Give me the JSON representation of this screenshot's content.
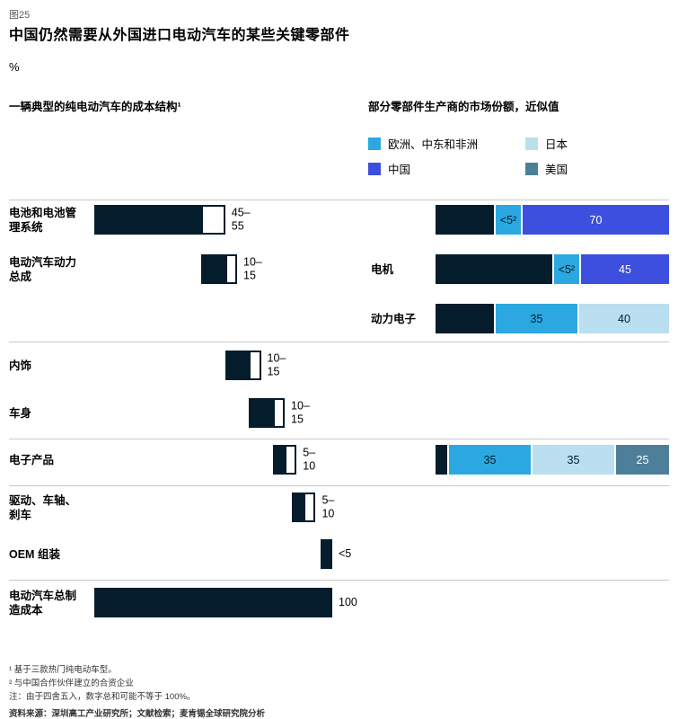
{
  "header": {
    "figure_label": "图25",
    "title": "中国仍然需要从外国进口电动汽车的某些关键零部件",
    "unit": "%"
  },
  "panels": {
    "left_title": "一辆典型的纯电动汽车的成本结构¹",
    "right_title": "部分零部件生产商的市场份额，近似值"
  },
  "legend": {
    "items": [
      {
        "label": "欧洲、中东和非洲",
        "key": "emea"
      },
      {
        "label": "中国",
        "key": "china"
      },
      {
        "label": "日本",
        "key": "japan"
      },
      {
        "label": "美国",
        "key": "us"
      }
    ]
  },
  "palette": {
    "dark": "#051c2c",
    "emea": "#2ba8e0",
    "china": "#3d4fde",
    "japan": "#b9dff0",
    "us": "#4e7f98"
  },
  "chart_data": [
    {
      "type": "bar",
      "variant": "waterfall",
      "title": "一辆典型的纯电动汽车的成本结构",
      "unit": "%",
      "axis_max": 100,
      "items": [
        {
          "label": "电池和电池管理系统",
          "row": 0,
          "start": 0,
          "solid_to": 45,
          "range_to": 55,
          "value_label": "45–\n55"
        },
        {
          "label": "电动汽车动力总成",
          "row": 1,
          "start": 45,
          "solid_to": 55,
          "range_to": 60,
          "value_label": "10–\n15"
        },
        {
          "label": "内饰",
          "row": 3,
          "start": 55,
          "solid_to": 65,
          "range_to": 70,
          "value_label": "10–\n15"
        },
        {
          "label": "车身",
          "row": 4,
          "start": 65,
          "solid_to": 75,
          "range_to": 80,
          "value_label": "10–\n15"
        },
        {
          "label": "电子产品",
          "row": 5,
          "start": 75,
          "solid_to": 80,
          "range_to": 85,
          "value_label": "5–\n10"
        },
        {
          "label": "驱动、车轴、刹车",
          "row": 6,
          "start": 83,
          "solid_to": 88,
          "range_to": 93,
          "value_label": "5–\n10"
        },
        {
          "label": "OEM 组装",
          "row": 7,
          "start": 95,
          "solid_to": 100,
          "range_to": null,
          "value_label": "<5"
        },
        {
          "label": "电动汽车总制造成本",
          "row": 8,
          "start": 0,
          "solid_to": 100,
          "range_to": null,
          "value_label": "100"
        }
      ]
    },
    {
      "type": "bar",
      "variant": "stacked",
      "title": "部分零部件生产商的市场份额，近似值",
      "unit": "%",
      "rows": [
        {
          "label": "",
          "row": 0,
          "segments": [
            {
              "region": "other",
              "value": 25,
              "label": ""
            },
            {
              "region": "emea",
              "value": 5,
              "label": "<5²"
            },
            {
              "region": "china",
              "value": 70,
              "label": "70"
            }
          ]
        },
        {
          "label": "电机",
          "row": 1,
          "segments": [
            {
              "region": "other",
              "value": 50,
              "label": ""
            },
            {
              "region": "emea",
              "value": 5,
              "label": "<5²"
            },
            {
              "region": "china",
              "value": 45,
              "label": "45"
            }
          ]
        },
        {
          "label": "动力电子",
          "row": 2,
          "segments": [
            {
              "region": "other",
              "value": 25,
              "label": ""
            },
            {
              "region": "emea",
              "value": 35,
              "label": "35"
            },
            {
              "region": "japan",
              "value": 40,
              "label": "40"
            }
          ]
        },
        {
          "label": "",
          "row": 5,
          "segments": [
            {
              "region": "other",
              "value": 5,
              "label": ""
            },
            {
              "region": "emea",
              "value": 35,
              "label": "35"
            },
            {
              "region": "japan",
              "value": 35,
              "label": "35"
            },
            {
              "region": "us",
              "value": 25,
              "label": "25"
            }
          ]
        }
      ]
    }
  ],
  "footnotes": [
    "¹ 基于三款热门纯电动车型。",
    "² 与中国合作伙伴建立的合资企业",
    "注：由于四舍五入，数字总和可能不等于 100%。"
  ],
  "source": "资料来源：深圳高工产业研究所；文献检索；麦肯锡全球研究院分析"
}
